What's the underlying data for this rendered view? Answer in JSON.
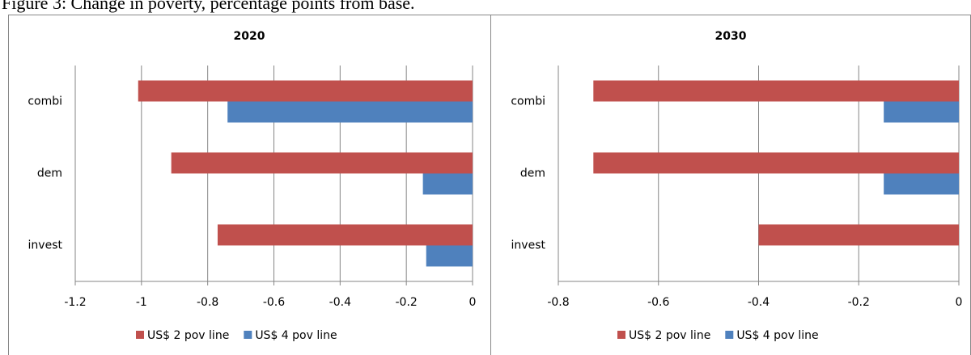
{
  "caption": "Figure 3: Change in poverty, percentage points from base.",
  "chart_data": [
    {
      "type": "barh",
      "title": "2020",
      "categories": [
        "combi",
        "dem",
        "invest"
      ],
      "series": [
        {
          "name": "US$ 2 pov line",
          "color": "#c0504d",
          "values": [
            -1.01,
            -0.91,
            -0.77
          ]
        },
        {
          "name": "US$ 4 pov line",
          "color": "#4f81bd",
          "values": [
            -0.74,
            -0.15,
            -0.14
          ]
        }
      ],
      "xlim": [
        -1.2,
        0
      ],
      "xticks": [
        -1.2,
        -1,
        -0.8,
        -0.6,
        -0.4,
        -0.2,
        0
      ],
      "grid": true,
      "legend": "bottom"
    },
    {
      "type": "barh",
      "title": "2030",
      "categories": [
        "combi",
        "dem",
        "invest"
      ],
      "series": [
        {
          "name": "US$ 2 pov line",
          "color": "#c0504d",
          "values": [
            -0.73,
            -0.73,
            -0.4
          ]
        },
        {
          "name": "US$ 4 pov line",
          "color": "#4f81bd",
          "values": [
            -0.15,
            -0.15,
            0
          ]
        }
      ],
      "xlim": [
        -0.8,
        0
      ],
      "xticks": [
        -0.8,
        -0.6,
        -0.4,
        -0.2,
        0
      ],
      "grid": true,
      "legend": "bottom"
    }
  ]
}
